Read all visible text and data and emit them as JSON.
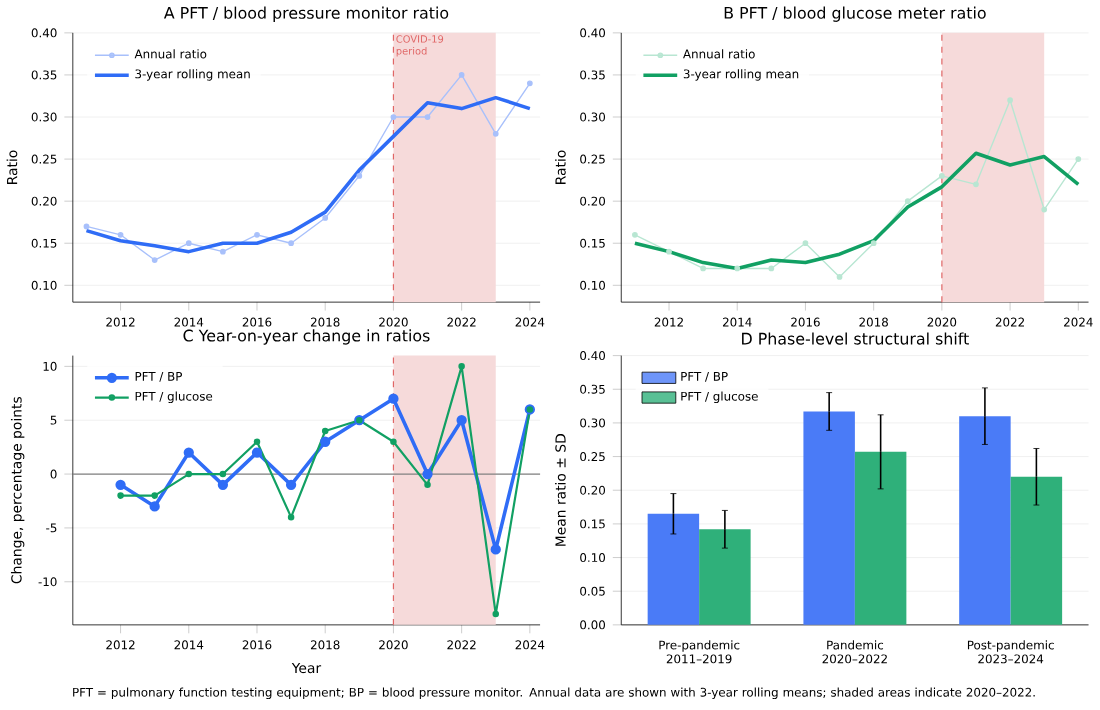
{
  "chart_data": [
    {
      "type": "line",
      "title": "A  PFT / blood pressure monitor ratio",
      "ylabel": "Ratio",
      "x": [
        2011,
        2012,
        2013,
        2014,
        2015,
        2016,
        2017,
        2018,
        2019,
        2020,
        2021,
        2022,
        2023,
        2024
      ],
      "series": [
        {
          "name": "Annual ratio",
          "color": "#a8c0fb",
          "marker": "circle",
          "values": [
            0.17,
            0.16,
            0.13,
            0.15,
            0.14,
            0.16,
            0.15,
            0.18,
            0.23,
            0.3,
            0.3,
            0.35,
            0.28,
            0.34
          ]
        },
        {
          "name": "3-year rolling mean",
          "color": "#2f6cf6",
          "marker": "none",
          "values": [
            0.165,
            0.153,
            0.147,
            0.14,
            0.15,
            0.15,
            0.163,
            0.187,
            0.237,
            0.277,
            0.317,
            0.31,
            0.323,
            0.31
          ]
        }
      ],
      "xlim": [
        2010.6,
        2024.3
      ],
      "ylim": [
        0.08,
        0.4
      ],
      "xticks": [
        2012,
        2014,
        2016,
        2018,
        2020,
        2022,
        2024
      ],
      "yticks": [
        {
          "value": 0.1,
          "label": "0.10"
        },
        {
          "value": 0.15,
          "label": "0.15"
        },
        {
          "value": 0.2,
          "label": "0.20"
        },
        {
          "value": 0.25,
          "label": "0.25"
        },
        {
          "value": 0.3,
          "label": "0.30"
        },
        {
          "value": 0.35,
          "label": "0.35"
        },
        {
          "value": 0.4,
          "label": "0.40"
        }
      ],
      "grid": "y",
      "legend": "top left",
      "bands": [
        {
          "axis": "x",
          "from": 2020,
          "to": 2023,
          "color": "#f6dada"
        }
      ],
      "ref_lines": [
        {
          "axis": "x",
          "value": 2020,
          "label": "COVID-19 period",
          "color": "#e06666",
          "line_style": "dashed"
        }
      ]
    },
    {
      "type": "line",
      "title": "B  PFT / blood glucose meter ratio",
      "ylabel": "Ratio",
      "x": [
        2011,
        2012,
        2013,
        2014,
        2015,
        2016,
        2017,
        2018,
        2019,
        2020,
        2021,
        2022,
        2023,
        2024
      ],
      "series": [
        {
          "name": "Annual ratio",
          "color": "#b8e6d2",
          "marker": "circle",
          "values": [
            0.16,
            0.14,
            0.12,
            0.12,
            0.12,
            0.15,
            0.11,
            0.15,
            0.2,
            0.23,
            0.22,
            0.32,
            0.19,
            0.25
          ]
        },
        {
          "name": "3-year rolling mean",
          "color": "#11a063",
          "marker": "none",
          "values": [
            0.15,
            0.14,
            0.127,
            0.12,
            0.13,
            0.127,
            0.137,
            0.153,
            0.193,
            0.217,
            0.257,
            0.243,
            0.253,
            0.22
          ]
        }
      ],
      "xlim": [
        2010.6,
        2024.3
      ],
      "ylim": [
        0.08,
        0.4
      ],
      "xticks": [
        2012,
        2014,
        2016,
        2018,
        2020,
        2022,
        2024
      ],
      "yticks": [
        {
          "value": 0.1,
          "label": "0.10"
        },
        {
          "value": 0.15,
          "label": "0.15"
        },
        {
          "value": 0.2,
          "label": "0.20"
        },
        {
          "value": 0.25,
          "label": "0.25"
        },
        {
          "value": 0.3,
          "label": "0.30"
        },
        {
          "value": 0.35,
          "label": "0.35"
        },
        {
          "value": 0.4,
          "label": "0.40"
        }
      ],
      "grid": "y",
      "legend": "top left",
      "bands": [
        {
          "axis": "x",
          "from": 2020,
          "to": 2023,
          "color": "#f6dada"
        }
      ],
      "ref_lines": [
        {
          "axis": "x",
          "value": 2020,
          "color": "#e06666",
          "line_style": "dashed"
        }
      ]
    },
    {
      "type": "line",
      "title": "C  Year-on-year change in ratios",
      "xlabel": "Year",
      "ylabel": "Change, percentage points",
      "x": [
        2012,
        2013,
        2014,
        2015,
        2016,
        2017,
        2018,
        2019,
        2020,
        2021,
        2022,
        2023,
        2024
      ],
      "series": [
        {
          "name": "PFT / BP",
          "color": "#2f6cf6",
          "marker": "circle",
          "values": [
            -1,
            -3,
            2,
            -1,
            2,
            -1,
            3,
            5,
            7,
            0,
            5,
            -7,
            6
          ]
        },
        {
          "name": "PFT / glucose",
          "color": "#11a063",
          "marker": "circle",
          "values": [
            -2,
            -2,
            0,
            0,
            3,
            -4,
            4,
            5,
            3,
            -1,
            10,
            -13,
            6
          ]
        }
      ],
      "xlim": [
        2010.6,
        2024.3
      ],
      "ylim": [
        -14,
        11
      ],
      "xticks": [
        2012,
        2014,
        2016,
        2018,
        2020,
        2022,
        2024
      ],
      "yticks": [
        -10,
        -5,
        0,
        5,
        10
      ],
      "grid": "y",
      "legend": "top left",
      "bands": [
        {
          "axis": "x",
          "from": 2020,
          "to": 2023,
          "color": "#f6dada"
        }
      ],
      "ref_lines": [
        {
          "axis": "x",
          "value": 2020,
          "color": "#e06666",
          "line_style": "dashed"
        },
        {
          "axis": "y",
          "value": 0,
          "color": "#808080",
          "line_style": "solid"
        }
      ]
    },
    {
      "type": "bar",
      "title": "D  Phase-level structural shift",
      "ylabel": "Mean ratio ± SD",
      "categories": [
        "Pre-pandemic 2011–2019",
        "Pandemic 2020–2022",
        "Post-pandemic 2023–2024"
      ],
      "series": [
        {
          "name": "PFT / BP",
          "color": "#4a7bf7",
          "values": [
            0.165,
            0.317,
            0.31
          ],
          "errors": [
            0.03,
            0.028,
            0.042
          ]
        },
        {
          "name": "PFT / glucose",
          "color": "#2fb07a",
          "values": [
            0.142,
            0.257,
            0.22
          ],
          "errors": [
            0.028,
            0.055,
            0.042
          ]
        }
      ],
      "ylim": [
        0,
        0.4
      ],
      "yticks": [
        {
          "value": 0,
          "label": "0.00"
        },
        {
          "value": 0.05,
          "label": "0.05"
        },
        {
          "value": 0.1,
          "label": "0.10"
        },
        {
          "value": 0.15,
          "label": "0.15"
        },
        {
          "value": 0.2,
          "label": "0.20"
        },
        {
          "value": 0.25,
          "label": "0.25"
        },
        {
          "value": 0.3,
          "label": "0.30"
        },
        {
          "value": 0.35,
          "label": "0.35"
        },
        {
          "value": 0.4,
          "label": "0.40"
        }
      ],
      "grid": "y",
      "legend": "top left",
      "annotations": [
        "PFT = pulmonary function testing equipment; BP = blood pressure monitor. Annual data are shown with 3-year rolling means; shaded areas indicate 2020–2022."
      ]
    }
  ]
}
